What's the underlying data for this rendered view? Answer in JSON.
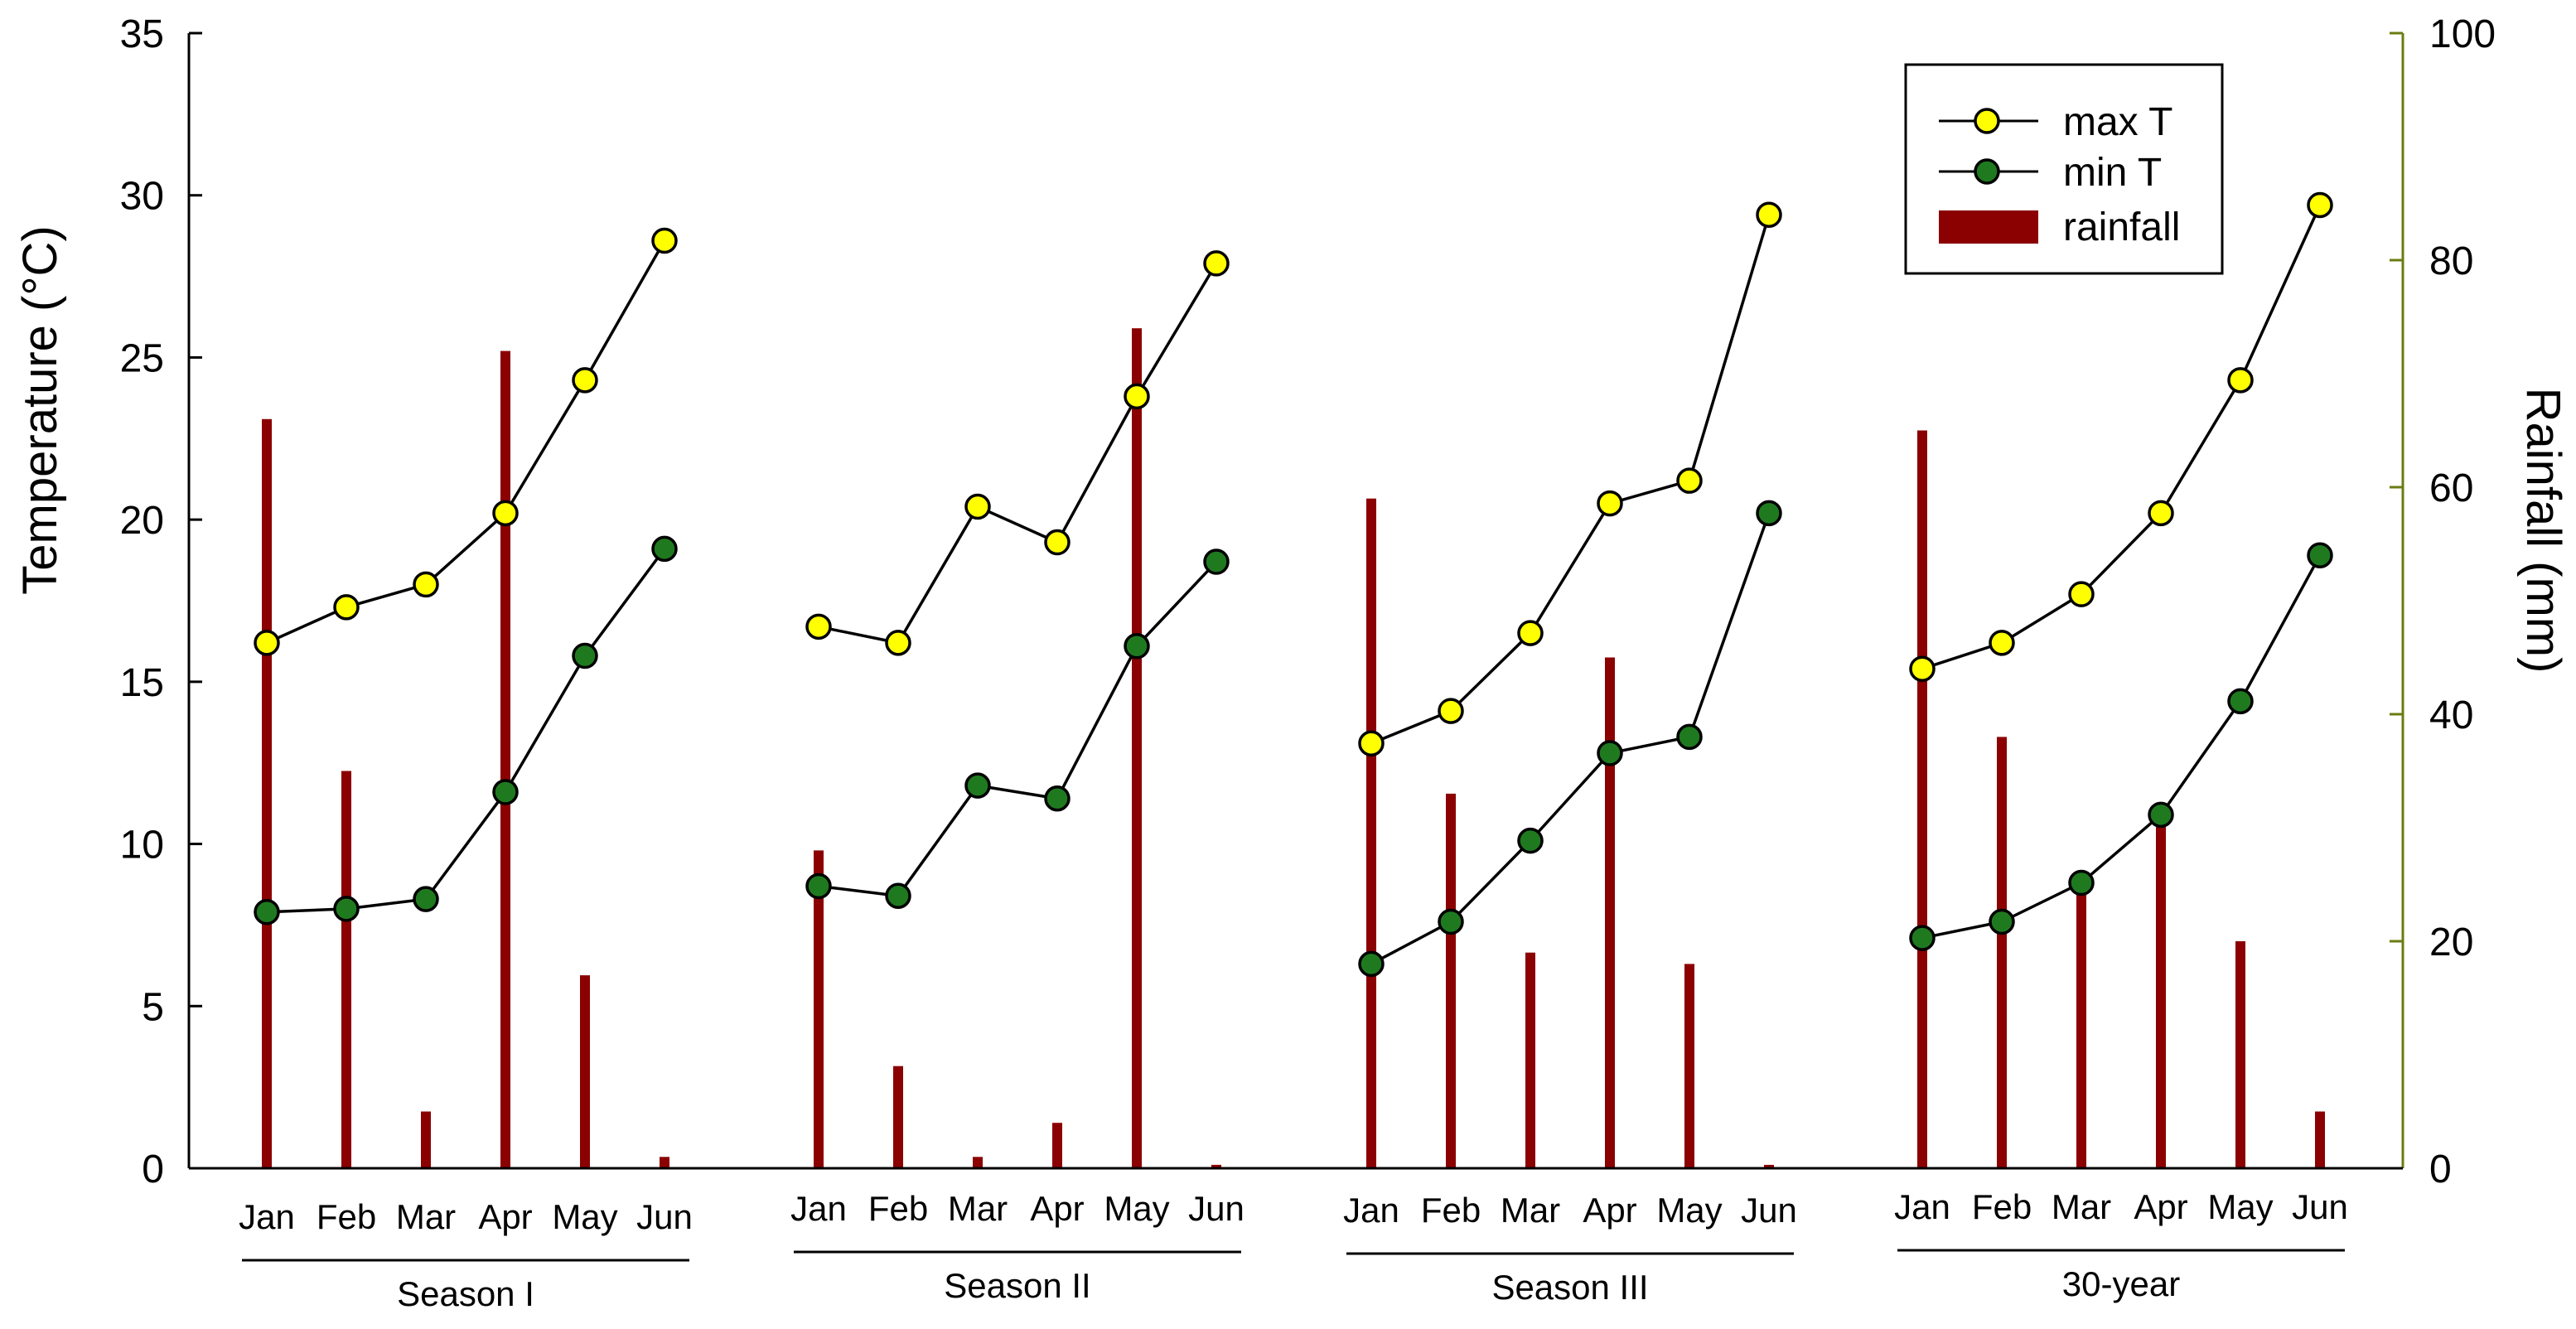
{
  "chart_data": {
    "type": "bar+line",
    "ylabel": "Temperature (°C)",
    "y2label": "Rainfall (mm)",
    "ylim": [
      0,
      35
    ],
    "y2lim": [
      0,
      100
    ],
    "yticks": [
      "0",
      "5",
      "10",
      "15",
      "20",
      "25",
      "30",
      "35"
    ],
    "y2ticks": [
      "0",
      "20",
      "40",
      "60",
      "80",
      "100"
    ],
    "grid": false,
    "legend_position": "top-right",
    "legend": [
      "max T",
      "min T",
      "rainfall"
    ],
    "colors": {
      "max_fill": "#ffff00",
      "min_fill": "#1f7a1f",
      "rain": "#8b0000",
      "y2axis": "#6b7c12"
    },
    "groups": [
      {
        "label": "Season I",
        "months": [
          "Jan",
          "Feb",
          "Mar",
          "Apr",
          "May",
          "Jun"
        ],
        "max_t": [
          16.2,
          17.3,
          18.0,
          20.2,
          24.3,
          28.6
        ],
        "min_t": [
          7.9,
          8.0,
          8.3,
          11.6,
          15.8,
          19.1
        ],
        "rainfall": [
          66,
          35,
          5,
          72,
          17,
          1
        ]
      },
      {
        "label": "Season II",
        "months": [
          "Jan",
          "Feb",
          "Mar",
          "Apr",
          "May",
          "Jun"
        ],
        "max_t": [
          16.7,
          16.2,
          20.4,
          19.3,
          23.8,
          27.9
        ],
        "min_t": [
          8.7,
          8.4,
          11.8,
          11.4,
          16.1,
          18.7
        ],
        "rainfall": [
          28,
          9,
          1,
          4,
          74,
          0.3
        ]
      },
      {
        "label": "Season III",
        "months": [
          "Jan",
          "Feb",
          "Mar",
          "Apr",
          "May",
          "Jun"
        ],
        "max_t": [
          13.1,
          14.1,
          16.5,
          20.5,
          21.2,
          29.4
        ],
        "min_t": [
          6.3,
          7.6,
          10.1,
          12.8,
          13.3,
          20.2
        ],
        "rainfall": [
          59,
          33,
          19,
          45,
          18,
          0.3
        ]
      },
      {
        "label": "30-year",
        "months": [
          "Jan",
          "Feb",
          "Mar",
          "Apr",
          "May",
          "Jun"
        ],
        "max_t": [
          15.4,
          16.2,
          17.7,
          20.2,
          24.3,
          29.7
        ],
        "min_t": [
          7.1,
          7.6,
          8.8,
          10.9,
          14.4,
          18.9
        ],
        "rainfall": [
          65,
          38,
          25,
          31,
          20,
          5
        ]
      }
    ]
  }
}
